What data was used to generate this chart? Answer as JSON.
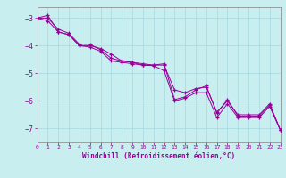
{
  "xlabel": "Windchill (Refroidissement éolien,°C)",
  "background_color": "#c8eef0",
  "grid_color": "#a8d8dc",
  "line_color": "#990099",
  "spine_color": "#808080",
  "x_min": 0,
  "x_max": 23,
  "y_min": -7.5,
  "y_max": -2.6,
  "yticks": [
    -7,
    -6,
    -5,
    -4,
    -3
  ],
  "xticks": [
    0,
    1,
    2,
    3,
    4,
    5,
    6,
    7,
    8,
    9,
    10,
    11,
    12,
    13,
    14,
    15,
    16,
    17,
    18,
    19,
    20,
    21,
    22,
    23
  ],
  "series1": [
    [
      0,
      -3.0
    ],
    [
      1,
      -2.9
    ],
    [
      2,
      -3.5
    ],
    [
      3,
      -3.6
    ],
    [
      4,
      -4.0
    ],
    [
      5,
      -4.0
    ],
    [
      6,
      -4.1
    ],
    [
      7,
      -4.3
    ],
    [
      8,
      -4.55
    ],
    [
      9,
      -4.6
    ],
    [
      10,
      -4.7
    ],
    [
      11,
      -4.7
    ],
    [
      12,
      -4.65
    ],
    [
      13,
      -5.95
    ],
    [
      14,
      -5.85
    ],
    [
      15,
      -5.6
    ],
    [
      16,
      -5.45
    ],
    [
      17,
      -6.45
    ],
    [
      18,
      -5.95
    ],
    [
      19,
      -6.55
    ],
    [
      20,
      -6.55
    ],
    [
      21,
      -6.55
    ],
    [
      22,
      -6.15
    ],
    [
      23,
      -7.05
    ]
  ],
  "series2": [
    [
      0,
      -3.0
    ],
    [
      1,
      -3.1
    ],
    [
      2,
      -3.5
    ],
    [
      3,
      -3.6
    ],
    [
      4,
      -4.0
    ],
    [
      5,
      -4.05
    ],
    [
      6,
      -4.2
    ],
    [
      7,
      -4.55
    ],
    [
      8,
      -4.6
    ],
    [
      9,
      -4.65
    ],
    [
      10,
      -4.7
    ],
    [
      11,
      -4.72
    ],
    [
      12,
      -4.9
    ],
    [
      13,
      -6.0
    ],
    [
      14,
      -5.9
    ],
    [
      15,
      -5.7
    ],
    [
      16,
      -5.7
    ],
    [
      17,
      -6.6
    ],
    [
      18,
      -6.1
    ],
    [
      19,
      -6.6
    ],
    [
      20,
      -6.6
    ],
    [
      21,
      -6.6
    ],
    [
      22,
      -6.2
    ],
    [
      23,
      -7.05
    ]
  ],
  "series3": [
    [
      0,
      -3.0
    ],
    [
      1,
      -3.0
    ],
    [
      2,
      -3.4
    ],
    [
      3,
      -3.55
    ],
    [
      4,
      -3.95
    ],
    [
      5,
      -3.95
    ],
    [
      6,
      -4.15
    ],
    [
      7,
      -4.45
    ],
    [
      8,
      -4.55
    ],
    [
      9,
      -4.6
    ],
    [
      10,
      -4.65
    ],
    [
      11,
      -4.7
    ],
    [
      12,
      -4.7
    ],
    [
      13,
      -5.6
    ],
    [
      14,
      -5.7
    ],
    [
      15,
      -5.55
    ],
    [
      16,
      -5.5
    ],
    [
      17,
      -6.4
    ],
    [
      18,
      -6.0
    ],
    [
      19,
      -6.5
    ],
    [
      20,
      -6.5
    ],
    [
      21,
      -6.5
    ],
    [
      22,
      -6.1
    ],
    [
      23,
      -7.05
    ]
  ]
}
